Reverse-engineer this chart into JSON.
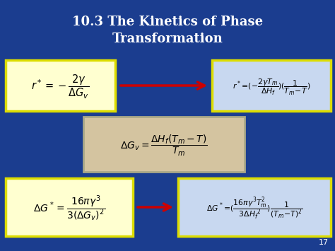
{
  "title_line1": "10.3 The Kinetics of Phase",
  "title_line2": "Transformation",
  "bg_color": "#1b3d8f",
  "title_color": "#ffffff",
  "title_fontsize": 13,
  "box1_color": "#ffffd0",
  "box1_border": "#dddd00",
  "box2_color": "#c8d8f0",
  "box2_border": "#dddd00",
  "box3_color": "#d4c4a0",
  "box3_border": "#aaa888",
  "box4_color": "#ffffd0",
  "box4_border": "#dddd00",
  "box5_color": "#c8d8f0",
  "box5_border": "#dddd00",
  "arrow_color": "#cc0000",
  "slide_number": "17"
}
